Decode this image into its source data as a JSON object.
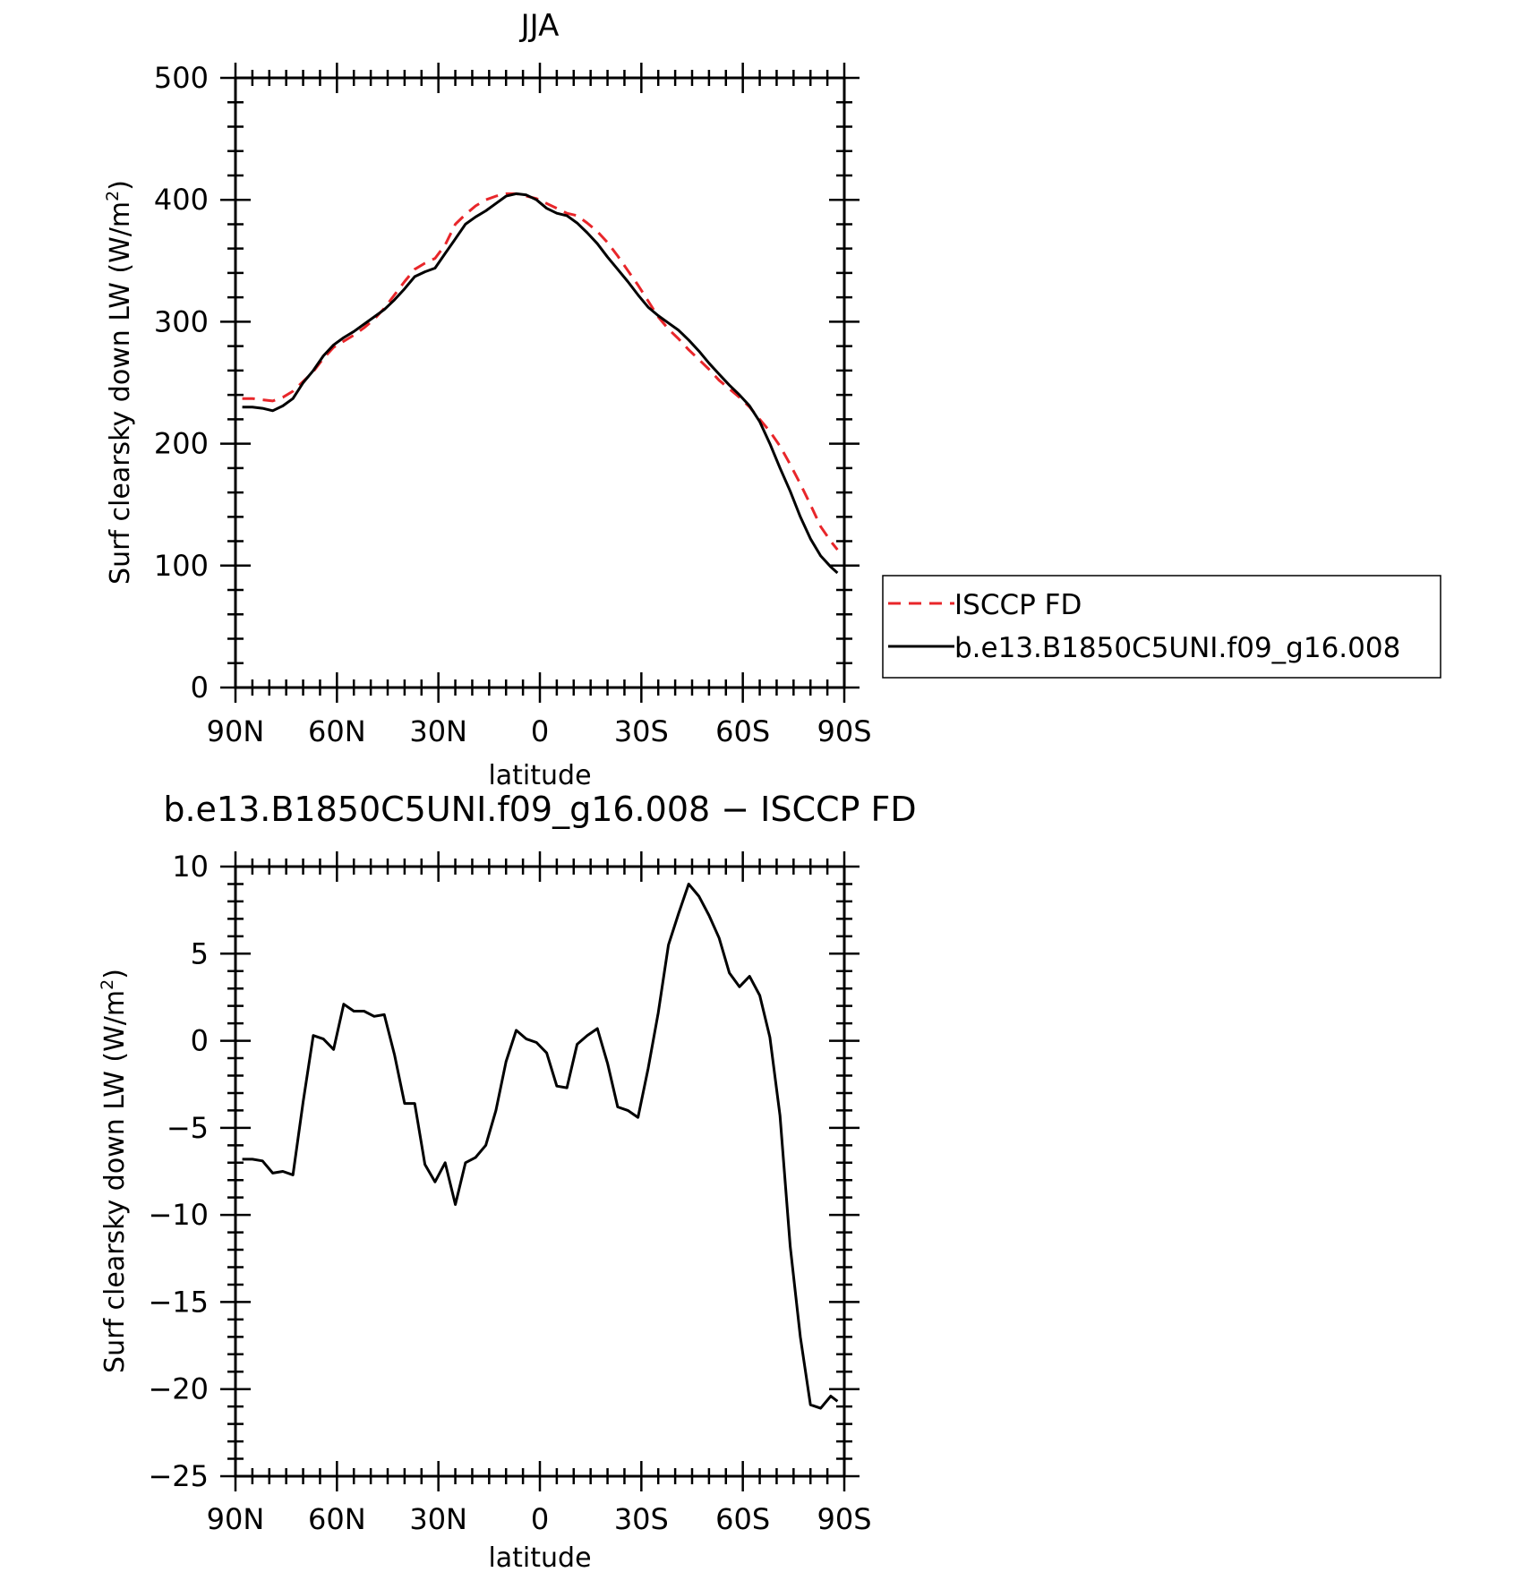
{
  "colors": {
    "model": "#000000",
    "obs": "#e8262a",
    "axis": "#000000",
    "background": "#ffffff"
  },
  "chart_data": [
    {
      "type": "line",
      "title": "JJA",
      "xlabel": "latitude",
      "ylabel_main": "Surf clearsky down LW (W/m",
      "ylabel_sup": "2",
      "ylabel_close": ")",
      "xlim": [
        90,
        -90
      ],
      "ylim": [
        0,
        500
      ],
      "x_ticks": [
        {
          "value": 90,
          "label": "90N"
        },
        {
          "value": 60,
          "label": "60N"
        },
        {
          "value": 30,
          "label": "30N"
        },
        {
          "value": 0,
          "label": "0"
        },
        {
          "value": -30,
          "label": "30S"
        },
        {
          "value": -60,
          "label": "60S"
        },
        {
          "value": -90,
          "label": "90S"
        }
      ],
      "y_ticks": [
        {
          "value": 0,
          "label": "0"
        },
        {
          "value": 100,
          "label": "100"
        },
        {
          "value": 200,
          "label": "200"
        },
        {
          "value": 300,
          "label": "300"
        },
        {
          "value": 400,
          "label": "400"
        },
        {
          "value": 500,
          "label": "500"
        }
      ],
      "legend": {
        "placement": "right",
        "entries": [
          "ISCCP FD",
          "b.e13.B1850C5UNI.f09_g16.008"
        ]
      },
      "series": [
        {
          "name": "ISCCP FD",
          "style": "dashed",
          "x": [
            88,
            85,
            82,
            79,
            76,
            73,
            70,
            67,
            64,
            61,
            58,
            55,
            52,
            49,
            46,
            43,
            40,
            37,
            34,
            31,
            28,
            25,
            22,
            19,
            16,
            13,
            10,
            7,
            4,
            1,
            -2,
            -5,
            -8,
            -11,
            -14,
            -17,
            -20,
            -23,
            -26,
            -29,
            -32,
            -35,
            -38,
            -41,
            -44,
            -47,
            -50,
            -53,
            -56,
            -59,
            -62,
            -65,
            -68,
            -71,
            -74,
            -77,
            -80,
            -83,
            -86,
            -88
          ],
          "y": [
            237,
            237,
            236,
            235,
            238,
            243,
            251,
            259,
            270,
            279,
            284,
            289,
            295,
            302,
            311,
            322,
            333,
            343,
            348,
            352,
            363,
            380,
            388,
            395,
            400,
            403,
            405,
            405,
            403,
            401,
            397,
            393,
            389,
            387,
            381,
            374,
            365,
            354,
            342,
            330,
            317,
            304,
            294,
            286,
            277,
            269,
            261,
            252,
            245,
            238,
            230,
            220,
            210,
            198,
            183,
            167,
            150,
            132,
            120,
            113
          ]
        },
        {
          "name": "b.e13.B1850C5UNI.f09_g16.008",
          "style": "solid",
          "x": [
            88,
            85,
            82,
            79,
            76,
            73,
            70,
            67,
            64,
            61,
            58,
            55,
            52,
            49,
            46,
            43,
            40,
            37,
            34,
            31,
            28,
            25,
            22,
            19,
            16,
            13,
            10,
            7,
            4,
            1,
            -2,
            -5,
            -8,
            -11,
            -14,
            -17,
            -20,
            -23,
            -26,
            -29,
            -32,
            -35,
            -38,
            -41,
            -44,
            -47,
            -50,
            -53,
            -56,
            -59,
            -62,
            -65,
            -68,
            -71,
            -74,
            -77,
            -80,
            -83,
            -86,
            -88
          ],
          "y": [
            230,
            230,
            229,
            227,
            231,
            237,
            250,
            260,
            272,
            281,
            287,
            292,
            298,
            304,
            310,
            318,
            327,
            337,
            341,
            344,
            356,
            368,
            380,
            386,
            391,
            397,
            403,
            405,
            404,
            400,
            393,
            389,
            387,
            381,
            373,
            364,
            353,
            343,
            333,
            322,
            312,
            305,
            299,
            293,
            285,
            276,
            266,
            257,
            248,
            240,
            231,
            218,
            200,
            180,
            161,
            140,
            122,
            108,
            99,
            94
          ]
        }
      ]
    },
    {
      "type": "line",
      "title": "b.e13.B1850C5UNI.f09_g16.008 − ISCCP FD",
      "xlabel": "latitude",
      "ylabel_main": "Surf clearsky down LW (W/m",
      "ylabel_sup": "2",
      "ylabel_close": ")",
      "xlim": [
        90,
        -90
      ],
      "ylim": [
        -25,
        10
      ],
      "x_ticks": [
        {
          "value": 90,
          "label": "90N"
        },
        {
          "value": 60,
          "label": "60N"
        },
        {
          "value": 30,
          "label": "30N"
        },
        {
          "value": 0,
          "label": "0"
        },
        {
          "value": -30,
          "label": "30S"
        },
        {
          "value": -60,
          "label": "60S"
        },
        {
          "value": -90,
          "label": "90S"
        }
      ],
      "y_ticks": [
        {
          "value": -25,
          "label": "−25"
        },
        {
          "value": -20,
          "label": "−20"
        },
        {
          "value": -15,
          "label": "−15"
        },
        {
          "value": -10,
          "label": "−10"
        },
        {
          "value": -5,
          "label": "−5"
        },
        {
          "value": 0,
          "label": "0"
        },
        {
          "value": 5,
          "label": "5"
        },
        {
          "value": 10,
          "label": "10"
        }
      ],
      "series": [
        {
          "name": "b.e13.B1850C5UNI.f09_g16.008 − ISCCP FD",
          "style": "solid",
          "x": [
            88,
            85,
            82,
            79,
            76,
            73,
            70,
            67,
            64,
            61,
            58,
            55,
            52,
            49,
            46,
            43,
            40,
            37,
            34,
            31,
            28,
            25,
            22,
            19,
            16,
            13,
            10,
            7,
            4,
            1,
            -2,
            -5,
            -8,
            -11,
            -14,
            -17,
            -20,
            -23,
            -26,
            -29,
            -32,
            -35,
            -38,
            -41,
            -44,
            -47,
            -50,
            -53,
            -56,
            -59,
            -62,
            -65,
            -68,
            -71,
            -74,
            -77,
            -80,
            -83,
            -86,
            -88
          ],
          "y": [
            -6.8,
            -6.8,
            -6.9,
            -7.6,
            -7.5,
            -7.7,
            -3.5,
            0.3,
            0.1,
            -0.5,
            2.1,
            1.7,
            1.7,
            1.4,
            1.5,
            -0.8,
            -3.6,
            -3.6,
            -7.1,
            -8.1,
            -7.0,
            -9.4,
            -7.0,
            -6.7,
            -6.0,
            -4.0,
            -1.2,
            0.6,
            0.1,
            -0.1,
            -0.7,
            -2.6,
            -2.7,
            -0.2,
            0.3,
            0.7,
            -1.3,
            -3.8,
            -4.0,
            -4.4,
            -1.6,
            1.6,
            5.5,
            7.3,
            9.0,
            8.3,
            7.2,
            5.9,
            3.9,
            3.1,
            3.7,
            2.6,
            0.2,
            -4.3,
            -11.8,
            -17.0,
            -20.9,
            -21.1,
            -20.4,
            -20.7
          ]
        }
      ]
    }
  ]
}
